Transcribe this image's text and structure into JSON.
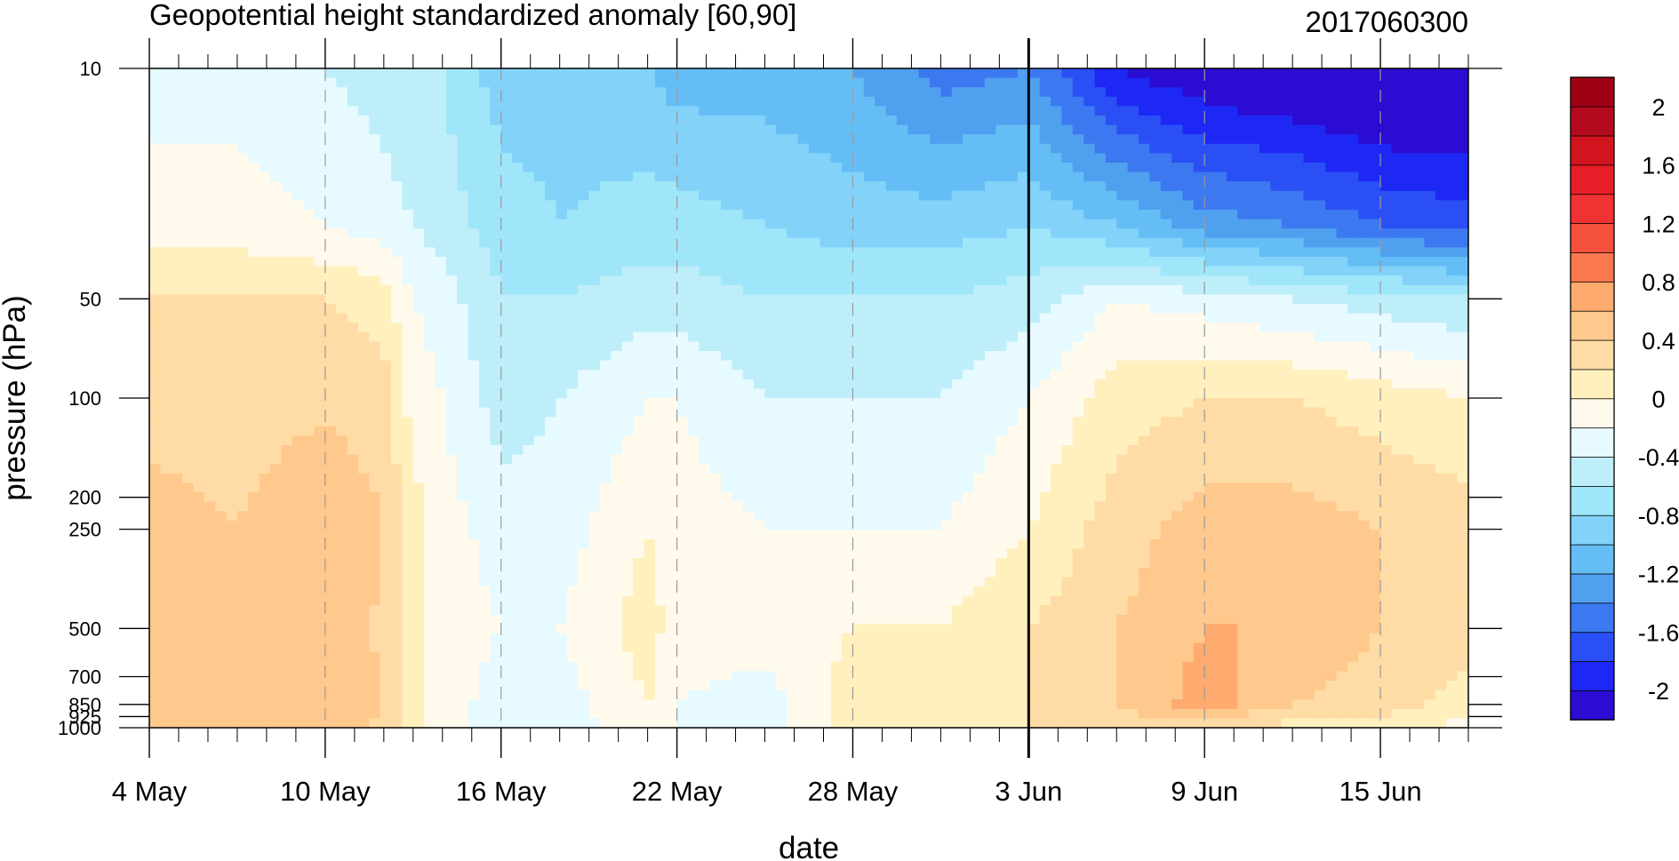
{
  "chart_data": {
    "type": "heatmap",
    "title": "Geopotential height standardized anomaly [60,90]",
    "title_right": "2017060300",
    "xlabel": "date",
    "ylabel": "pressure (hPa)",
    "x_ticks": [
      {
        "day": 0,
        "label": "4 May"
      },
      {
        "day": 6,
        "label": "10 May"
      },
      {
        "day": 12,
        "label": "16 May"
      },
      {
        "day": 18,
        "label": "22 May"
      },
      {
        "day": 24,
        "label": "28 May"
      },
      {
        "day": 30,
        "label": "3 Jun"
      },
      {
        "day": 36,
        "label": "9 Jun"
      },
      {
        "day": 42,
        "label": "15 Jun"
      }
    ],
    "x_range_days": [
      0,
      45
    ],
    "forecast_start_day": 30,
    "y_scale": "log",
    "y_range_hPa": [
      1000,
      10
    ],
    "y_ticks": [
      {
        "value": 10,
        "label": "10"
      },
      {
        "value": 50,
        "label": "50"
      },
      {
        "value": 100,
        "label": "100"
      },
      {
        "value": 200,
        "label": "200"
      },
      {
        "value": 250,
        "label": "250"
      },
      {
        "value": 500,
        "label": "500"
      },
      {
        "value": 700,
        "label": "700"
      },
      {
        "value": 850,
        "label": "850"
      },
      {
        "value": 925,
        "label": "925"
      },
      {
        "value": 1000,
        "label": "1000"
      }
    ],
    "colorbar": {
      "levels": [
        -2.2,
        -2.0,
        -1.8,
        -1.6,
        -1.4,
        -1.2,
        -1.0,
        -0.8,
        -0.6,
        -0.4,
        -0.2,
        0,
        0.2,
        0.4,
        0.6,
        0.8,
        1.0,
        1.2,
        1.4,
        1.6,
        1.8,
        2.0,
        2.2
      ],
      "colors": [
        "#2a0cd2",
        "#1e28f5",
        "#2a50f5",
        "#3c78f0",
        "#50a0f0",
        "#64bef5",
        "#82d2fa",
        "#a0e6fa",
        "#beeefa",
        "#e6faff",
        "#fffaeb",
        "#fff0be",
        "#ffdca5",
        "#ffc88c",
        "#ffaa6e",
        "#fa7850",
        "#f5503c",
        "#f03232",
        "#e61e28",
        "#d2141e",
        "#b40a1e",
        "#a00014"
      ],
      "tick_labels": [
        {
          "value": -2.0,
          "label": "-2"
        },
        {
          "value": -1.6,
          "label": "-1.6"
        },
        {
          "value": -1.2,
          "label": "-1.2"
        },
        {
          "value": -0.8,
          "label": "-0.8"
        },
        {
          "value": -0.4,
          "label": "-0.4"
        },
        {
          "value": 0,
          "label": "0"
        },
        {
          "value": 0.4,
          "label": "0.4"
        },
        {
          "value": 0.8,
          "label": "0.8"
        },
        {
          "value": 1.2,
          "label": "1.2"
        },
        {
          "value": 1.6,
          "label": "1.6"
        },
        {
          "value": 2.0,
          "label": "2"
        }
      ]
    },
    "anomaly_profile_hPa": [
      10,
      30,
      50,
      100,
      250,
      500,
      850,
      1000
    ],
    "anomaly_columns": [
      {
        "day": 0,
        "values": [
          -0.3,
          -0.1,
          0.2,
          0.3,
          0.5,
          0.4,
          0.4,
          0.4
        ]
      },
      {
        "day": 3,
        "values": [
          -0.3,
          -0.1,
          0.2,
          0.3,
          0.4,
          0.4,
          0.5,
          0.4
        ]
      },
      {
        "day": 6,
        "values": [
          -0.4,
          -0.2,
          0.2,
          0.35,
          0.6,
          0.6,
          0.6,
          0.5
        ]
      },
      {
        "day": 8,
        "values": [
          -0.5,
          -0.3,
          0.1,
          0.3,
          0.4,
          0.35,
          0.4,
          0.35
        ]
      },
      {
        "day": 9,
        "values": [
          -0.6,
          -0.4,
          -0.2,
          -0.1,
          0.1,
          0.1,
          0.1,
          0.1
        ]
      },
      {
        "day": 10,
        "values": [
          -0.6,
          -0.5,
          -0.3,
          -0.2,
          -0.1,
          -0.1,
          -0.1,
          -0.1
        ]
      },
      {
        "day": 12,
        "values": [
          -0.9,
          -0.7,
          -0.6,
          -0.5,
          -0.3,
          -0.2,
          -0.3,
          -0.3
        ]
      },
      {
        "day": 14,
        "values": [
          -0.9,
          -0.8,
          -0.6,
          -0.4,
          -0.3,
          -0.2,
          -0.3,
          -0.3
        ]
      },
      {
        "day": 17,
        "values": [
          -1.0,
          -0.7,
          -0.5,
          -0.2,
          0.0,
          0.1,
          0.0,
          -0.1
        ]
      },
      {
        "day": 18,
        "values": [
          -1.1,
          -0.7,
          -0.5,
          -0.2,
          -0.1,
          -0.1,
          -0.2,
          -0.2
        ]
      },
      {
        "day": 21,
        "values": [
          -1.1,
          -0.8,
          -0.6,
          -0.4,
          -0.2,
          -0.1,
          -0.3,
          -0.3
        ]
      },
      {
        "day": 24,
        "values": [
          -1.2,
          -0.9,
          -0.6,
          -0.4,
          -0.2,
          0.0,
          0.1,
          0.1
        ]
      },
      {
        "day": 27,
        "values": [
          -1.5,
          -0.9,
          -0.6,
          -0.4,
          -0.2,
          0.0,
          0.1,
          0.1
        ]
      },
      {
        "day": 30,
        "values": [
          -1.4,
          -0.8,
          -0.5,
          -0.2,
          0.0,
          0.2,
          0.2,
          0.2
        ]
      },
      {
        "day": 33,
        "values": [
          -2.0,
          -1.0,
          -0.2,
          0.1,
          0.3,
          0.4,
          0.4,
          0.3
        ]
      },
      {
        "day": 36,
        "values": [
          -2.2,
          -1.3,
          -0.3,
          0.2,
          0.5,
          0.6,
          0.7,
          0.3
        ]
      },
      {
        "day": 39,
        "values": [
          -2.3,
          -1.4,
          -0.4,
          0.2,
          0.5,
          0.6,
          0.4,
          0.1
        ]
      },
      {
        "day": 42,
        "values": [
          -2.4,
          -1.6,
          -0.5,
          0.1,
          0.4,
          0.4,
          0.3,
          0.1
        ]
      },
      {
        "day": 45,
        "values": [
          -2.4,
          -1.7,
          -0.6,
          0.0,
          0.3,
          0.3,
          0.1,
          -0.1
        ]
      }
    ]
  }
}
